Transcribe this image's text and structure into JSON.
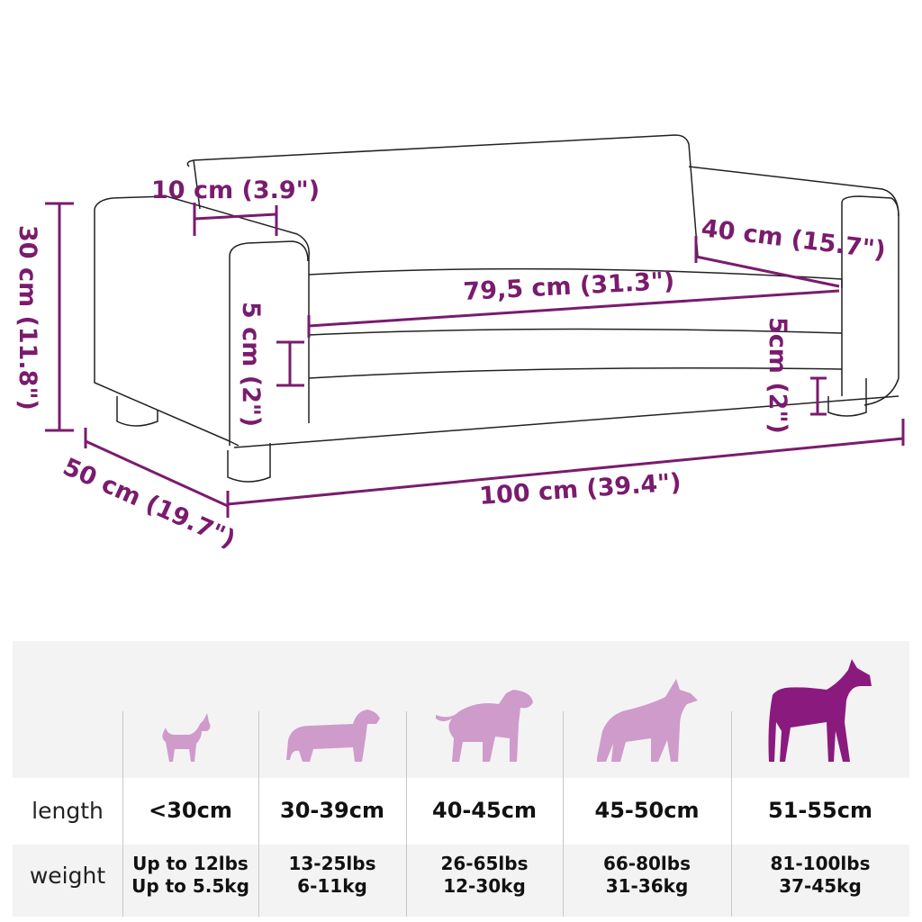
{
  "dimensions": {
    "back_thickness": "10 cm (3.9\")",
    "seat_depth": "40 cm (15.7\")",
    "seat_width": "79,5 cm (31.3\")",
    "height": "30 cm (11.8\")",
    "cushion_left": "5 cm (2\")",
    "leg_right": "5cm (2\")",
    "depth": "50 cm (19.7\")",
    "width": "100 cm (39.4\")"
  },
  "colors": {
    "accent": "#7a1b6e",
    "dog_light": "#cf9bcb",
    "dog_dark": "#8b1a7f"
  },
  "size_table": {
    "row_labels": {
      "length": "length",
      "weight": "weight"
    },
    "columns": [
      {
        "dog": "chihuahua-icon",
        "length": "<30cm",
        "weight_lbs": "Up to 12lbs",
        "weight_kg": "Up to 5.5kg"
      },
      {
        "dog": "dachshund-icon",
        "length": "30-39cm",
        "weight_lbs": "13-25lbs",
        "weight_kg": "6-11kg"
      },
      {
        "dog": "bull-terrier-icon",
        "length": "40-45cm",
        "weight_lbs": "26-65lbs",
        "weight_kg": "12-30kg"
      },
      {
        "dog": "shepherd-icon",
        "length": "45-50cm",
        "weight_lbs": "66-80lbs",
        "weight_kg": "31-36kg"
      },
      {
        "dog": "great-dane-icon",
        "length": "51-55cm",
        "weight_lbs": "81-100lbs",
        "weight_kg": "37-45kg"
      }
    ]
  }
}
